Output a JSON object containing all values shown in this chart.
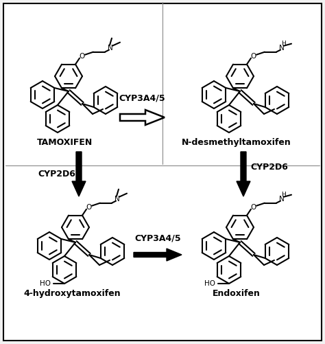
{
  "bg_color": "#f2f2f2",
  "border_color": "#000000",
  "line_color": "#000000",
  "label_tamoxifen": "TAMOXIFEN",
  "label_ndesmethyl": "N-desmethyltamoxifen",
  "label_hydroxy": "4-hydroxytamoxifen",
  "label_endoxifen": "Endoxifen",
  "label_cyp1": "CYP3A4/5",
  "label_cyp2": "CYP2D6",
  "label_cyp3": "CYP2D6",
  "label_cyp4": "CYP3A4/5",
  "label_fontsize": 9,
  "compound_fontsize": 9,
  "lw": 1.5
}
